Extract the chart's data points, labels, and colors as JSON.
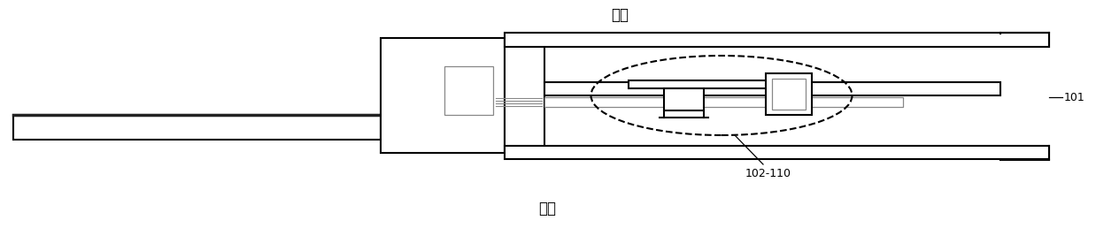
{
  "bg_color": "#ffffff",
  "line_color": "#000000",
  "gray_color": "#888888",
  "title_top": "顶层",
  "title_bottom": "底层",
  "label_101": "101",
  "label_102": "102-110",
  "figsize": [
    12.38,
    2.58
  ],
  "dpi": 100
}
